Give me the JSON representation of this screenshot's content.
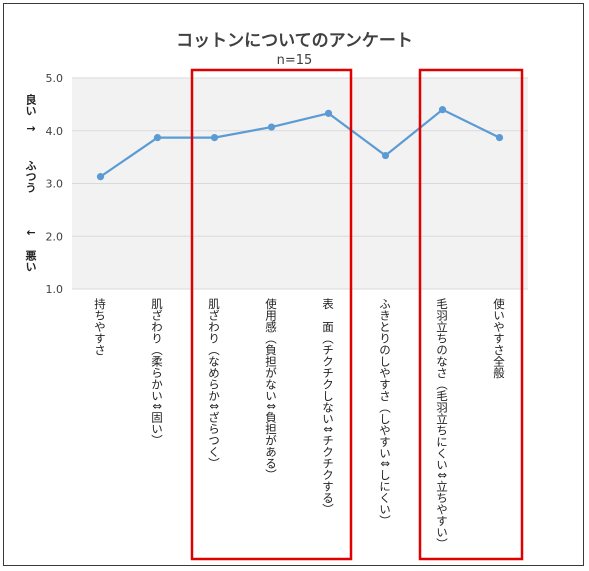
{
  "chart_data": {
    "type": "line",
    "title": "コットンについてのアンケート",
    "subtitle": "n=15",
    "ylim": [
      1.0,
      5.0
    ],
    "yticks": [
      "1.0",
      "2.0",
      "3.0",
      "4.0",
      "5.0"
    ],
    "ylabel_top": "良い",
    "ylabel_up_arrow": "↑",
    "ylabel_mid": "ふつう",
    "ylabel_down_arrow": "↓",
    "ylabel_bottom": "悪い",
    "grid": true,
    "legend": "none",
    "line_color": "#5b9bd5",
    "highlight_color": "#e00000",
    "categories": [
      "持ちやすさ",
      "肌ざわり（柔らかい⇕固い）",
      "肌ざわり（なめらか⇕ざらつく）",
      "使用感（負担がない⇕負担がある）",
      "表　面（チクチクしない⇕チクチクする）",
      "ふきとりのしやすさ（しやすい⇕しにくい）",
      "毛羽立ちのなさ（毛羽立ちにくい⇕立ちやすい）",
      "使いやすさ全般"
    ],
    "values": [
      3.13,
      3.87,
      3.87,
      4.07,
      4.33,
      3.53,
      4.4,
      3.87
    ],
    "highlights": [
      [
        2,
        4
      ],
      [
        6,
        7
      ]
    ]
  }
}
